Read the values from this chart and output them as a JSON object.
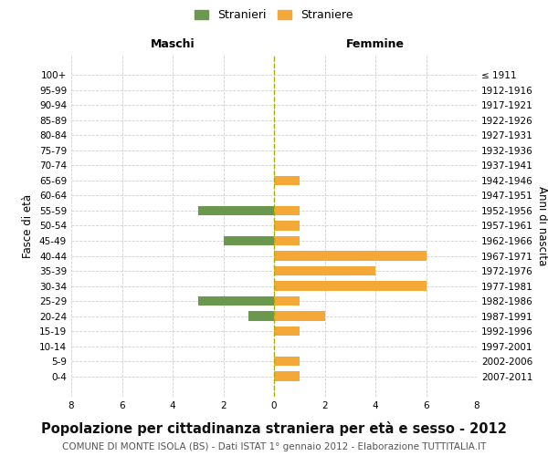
{
  "age_groups": [
    "100+",
    "95-99",
    "90-94",
    "85-89",
    "80-84",
    "75-79",
    "70-74",
    "65-69",
    "60-64",
    "55-59",
    "50-54",
    "45-49",
    "40-44",
    "35-39",
    "30-34",
    "25-29",
    "20-24",
    "15-19",
    "10-14",
    "5-9",
    "0-4"
  ],
  "birth_years": [
    "≤ 1911",
    "1912-1916",
    "1917-1921",
    "1922-1926",
    "1927-1931",
    "1932-1936",
    "1937-1941",
    "1942-1946",
    "1947-1951",
    "1952-1956",
    "1957-1961",
    "1962-1966",
    "1967-1971",
    "1972-1976",
    "1977-1981",
    "1982-1986",
    "1987-1991",
    "1992-1996",
    "1997-2001",
    "2002-2006",
    "2007-2011"
  ],
  "maschi": [
    0,
    0,
    0,
    0,
    0,
    0,
    0,
    0,
    0,
    3,
    0,
    2,
    0,
    0,
    0,
    3,
    1,
    0,
    0,
    0,
    0
  ],
  "femmine": [
    0,
    0,
    0,
    0,
    0,
    0,
    0,
    1,
    0,
    1,
    1,
    1,
    6,
    4,
    6,
    1,
    2,
    1,
    0,
    1,
    1
  ],
  "color_maschi": "#6a994e",
  "color_femmine": "#f4a838",
  "xlim": 8,
  "title": "Popolazione per cittadinanza straniera per età e sesso - 2012",
  "subtitle": "COMUNE DI MONTE ISOLA (BS) - Dati ISTAT 1° gennaio 2012 - Elaborazione TUTTITALIA.IT",
  "ylabel_left": "Fasce di età",
  "ylabel_right": "Anni di nascita",
  "legend_maschi": "Stranieri",
  "legend_femmine": "Straniere",
  "maschi_label": "Maschi",
  "femmine_label": "Femmine",
  "background_color": "#ffffff",
  "grid_color": "#d0d0d0",
  "fontsize_title": 10.5,
  "fontsize_subtitle": 7.5,
  "fontsize_legend": 9,
  "fontsize_ticks": 7.5,
  "fontsize_axis_labels": 8.5,
  "fontsize_header": 9
}
